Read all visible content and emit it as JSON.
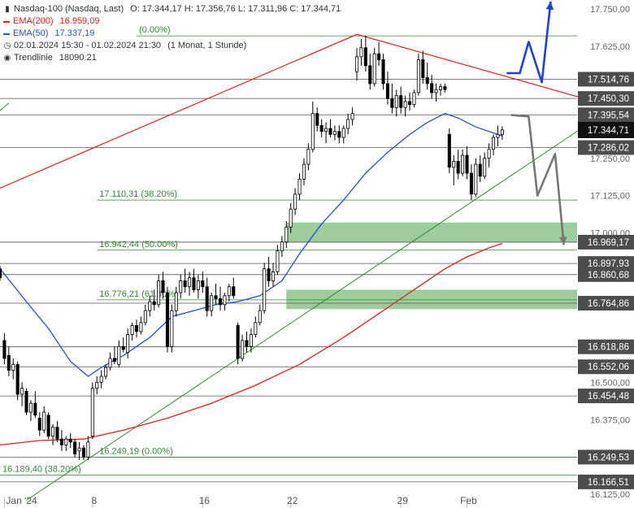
{
  "legend": {
    "symbol": "Nasdaq-100 (Nasdaq, Last)",
    "ohlc": "O: 17.344,17  H: 17.356,76  L: 17.311,96  C: 17.344,71",
    "ema200_label": "EMA(200)",
    "ema200_value": "16.959,09",
    "ema50_label": "EMA(50)",
    "ema50_value": "17.337,19",
    "range": "02.01.2024 15:30 - 01.02.2024 21:30",
    "interval": "(1 Monat, 1 Stunde)",
    "trendline_label": "Trendlinie",
    "trendline_value": "18090.21"
  },
  "colors": {
    "up": "#ffffff",
    "down": "#000000",
    "ema200": "#e0201c",
    "ema50": "#2450e0",
    "green_line": "#2e8b2e",
    "zone": "#8cc48c",
    "level_line": "#555555",
    "label_bg": "#4d4d4d",
    "current_bg": "#111111",
    "arrow_blue": "#1f3fe0",
    "arrow_grey": "#777777"
  },
  "chart_data": {
    "type": "candlestick",
    "ylim": [
      16120,
      17780
    ],
    "x_ticks": [
      {
        "label": "Jan '24",
        "x": 0
      },
      {
        "label": "8",
        "x": 20
      },
      {
        "label": "16",
        "x": 45
      },
      {
        "label": "22",
        "x": 65
      },
      {
        "label": "29",
        "x": 90
      },
      {
        "label": "Feb",
        "x": 105
      }
    ],
    "x_range": [
      -1,
      130
    ],
    "y_ticks": [
      "17.750,00",
      "17.625,00",
      "17.250,00",
      "17.125,00",
      "17.000,00",
      "16.500,00",
      "16.375,00",
      "16.125,00"
    ],
    "y_tick_values": [
      17750,
      17625,
      17250,
      17125,
      17000,
      16500,
      16375,
      16125
    ],
    "levels": [
      {
        "label": "17.514,76",
        "value": 17514.76
      },
      {
        "label": "17.450,30",
        "value": 17450.3
      },
      {
        "label": "17.395,54",
        "value": 17395.54
      },
      {
        "label": "17.286,02",
        "value": 17286.02
      },
      {
        "label": "16.969,17",
        "value": 16969.17
      },
      {
        "label": "16.897,93",
        "value": 16897.93
      },
      {
        "label": "16.860,68",
        "value": 16860.68
      },
      {
        "label": "16.764,86",
        "value": 16764.86
      },
      {
        "label": "16.618,86",
        "value": 16618.86
      },
      {
        "label": "16.552,06",
        "value": 16552.06
      },
      {
        "label": "16.454,48",
        "value": 16454.48
      },
      {
        "label": "16.249,53",
        "value": 16249.53
      },
      {
        "label": "16.166,51",
        "value": 16166.51
      }
    ],
    "current_price": {
      "label": "17.344,71",
      "value": 17344.71
    },
    "fib_levels": [
      {
        "label": "17.110,31 (38.20%)",
        "value": 17110.31
      },
      {
        "label": "16.942,44 (50.00%)",
        "value": 16942.44
      },
      {
        "label": "16.776,21 (61.80%)",
        "value": 16776.21
      },
      {
        "label": "16.249,19 (0.00%)",
        "value": 16249.19
      },
      {
        "label": "16.189,40 (38.20%)",
        "value": 16189.4
      },
      {
        "label": "(0.00%)",
        "value": 17660
      }
    ],
    "zones": [
      {
        "from": 16970,
        "to": 17035
      },
      {
        "from": 16745,
        "to": 16810
      }
    ],
    "ema50": [
      [
        -1,
        16880
      ],
      [
        5,
        16770
      ],
      [
        10,
        16680
      ],
      [
        15,
        16570
      ],
      [
        19,
        16520
      ],
      [
        22,
        16550
      ],
      [
        27,
        16590
      ],
      [
        33,
        16650
      ],
      [
        38,
        16720
      ],
      [
        43,
        16740
      ],
      [
        48,
        16760
      ],
      [
        53,
        16770
      ],
      [
        58,
        16790
      ],
      [
        63,
        16840
      ],
      [
        67,
        16930
      ],
      [
        72,
        17030
      ],
      [
        77,
        17110
      ],
      [
        82,
        17200
      ],
      [
        87,
        17270
      ],
      [
        92,
        17330
      ],
      [
        96,
        17370
      ],
      [
        100,
        17400
      ],
      [
        103,
        17385
      ],
      [
        107,
        17355
      ],
      [
        112,
        17330
      ],
      [
        113,
        17325
      ]
    ],
    "ema200": [
      [
        -1,
        16290
      ],
      [
        8,
        16305
      ],
      [
        18,
        16310
      ],
      [
        27,
        16340
      ],
      [
        37,
        16380
      ],
      [
        47,
        16430
      ],
      [
        57,
        16490
      ],
      [
        67,
        16560
      ],
      [
        77,
        16650
      ],
      [
        87,
        16750
      ],
      [
        95,
        16830
      ],
      [
        100,
        16880
      ],
      [
        105,
        16920
      ],
      [
        110,
        16950
      ],
      [
        113,
        16965
      ]
    ],
    "trendline_red": [
      [
        -1,
        17150
      ],
      [
        80,
        17665
      ],
      [
        134,
        17440
      ]
    ],
    "trendline_green": [
      [
        -1,
        17410
      ],
      [
        1,
        17435
      ]
    ],
    "trendline_green_support": [
      [
        5,
        16105
      ],
      [
        134,
        17380
      ]
    ],
    "blue_projection": [
      [
        114,
        17535
      ],
      [
        117,
        17535
      ],
      [
        119,
        17640
      ],
      [
        122,
        17505
      ],
      [
        124,
        17775
      ]
    ],
    "grey_projection": [
      [
        115,
        17395
      ],
      [
        119,
        17390
      ],
      [
        121,
        17125
      ],
      [
        125,
        17265
      ],
      [
        127,
        16960
      ]
    ],
    "candles": [
      {
        "x": -1,
        "o": 16880,
        "h": 16890,
        "l": 16840,
        "c": 16850
      },
      {
        "x": 0,
        "o": 16640,
        "h": 16665,
        "l": 16560,
        "c": 16580
      },
      {
        "x": 1,
        "o": 16590,
        "h": 16620,
        "l": 16520,
        "c": 16540
      },
      {
        "x": 2,
        "o": 16540,
        "h": 16580,
        "l": 16510,
        "c": 16560
      },
      {
        "x": 3,
        "o": 16560,
        "h": 16570,
        "l": 16440,
        "c": 16460
      },
      {
        "x": 4,
        "o": 16460,
        "h": 16500,
        "l": 16420,
        "c": 16480
      },
      {
        "x": 5,
        "o": 16470,
        "h": 16480,
        "l": 16390,
        "c": 16400
      },
      {
        "x": 6,
        "o": 16400,
        "h": 16440,
        "l": 16370,
        "c": 16430
      },
      {
        "x": 7,
        "o": 16430,
        "h": 16470,
        "l": 16380,
        "c": 16390
      },
      {
        "x": 8,
        "o": 16380,
        "h": 16400,
        "l": 16320,
        "c": 16340
      },
      {
        "x": 9,
        "o": 16340,
        "h": 16420,
        "l": 16330,
        "c": 16400
      },
      {
        "x": 10,
        "o": 16390,
        "h": 16400,
        "l": 16310,
        "c": 16320
      },
      {
        "x": 11,
        "o": 16320,
        "h": 16360,
        "l": 16290,
        "c": 16350
      },
      {
        "x": 12,
        "o": 16350,
        "h": 16370,
        "l": 16300,
        "c": 16310
      },
      {
        "x": 13,
        "o": 16310,
        "h": 16340,
        "l": 16270,
        "c": 16290
      },
      {
        "x": 14,
        "o": 16290,
        "h": 16320,
        "l": 16270,
        "c": 16310
      },
      {
        "x": 15,
        "o": 16310,
        "h": 16330,
        "l": 16280,
        "c": 16300
      },
      {
        "x": 16,
        "o": 16300,
        "h": 16310,
        "l": 16250,
        "c": 16260
      },
      {
        "x": 17,
        "o": 16270,
        "h": 16300,
        "l": 16240,
        "c": 16280
      },
      {
        "x": 18,
        "o": 16280,
        "h": 16290,
        "l": 16240,
        "c": 16250
      },
      {
        "x": 19,
        "o": 16250,
        "h": 16320,
        "l": 16240,
        "c": 16300
      },
      {
        "x": 20,
        "o": 16320,
        "h": 16500,
        "l": 16310,
        "c": 16480
      },
      {
        "x": 21,
        "o": 16480,
        "h": 16520,
        "l": 16460,
        "c": 16500
      },
      {
        "x": 22,
        "o": 16500,
        "h": 16540,
        "l": 16480,
        "c": 16520
      },
      {
        "x": 23,
        "o": 16520,
        "h": 16560,
        "l": 16510,
        "c": 16550
      },
      {
        "x": 24,
        "o": 16550,
        "h": 16600,
        "l": 16540,
        "c": 16580
      },
      {
        "x": 25,
        "o": 16580,
        "h": 16620,
        "l": 16560,
        "c": 16570
      },
      {
        "x": 26,
        "o": 16560,
        "h": 16640,
        "l": 16550,
        "c": 16620
      },
      {
        "x": 27,
        "o": 16620,
        "h": 16650,
        "l": 16600,
        "c": 16610
      },
      {
        "x": 28,
        "o": 16600,
        "h": 16680,
        "l": 16580,
        "c": 16660
      },
      {
        "x": 29,
        "o": 16660,
        "h": 16700,
        "l": 16640,
        "c": 16690
      },
      {
        "x": 30,
        "o": 16690,
        "h": 16710,
        "l": 16650,
        "c": 16670
      },
      {
        "x": 31,
        "o": 16670,
        "h": 16720,
        "l": 16660,
        "c": 16700
      },
      {
        "x": 32,
        "o": 16700,
        "h": 16760,
        "l": 16690,
        "c": 16740
      },
      {
        "x": 33,
        "o": 16740,
        "h": 16790,
        "l": 16720,
        "c": 16770
      },
      {
        "x": 34,
        "o": 16770,
        "h": 16810,
        "l": 16740,
        "c": 16760
      },
      {
        "x": 35,
        "o": 16760,
        "h": 16860,
        "l": 16750,
        "c": 16840
      },
      {
        "x": 36,
        "o": 16840,
        "h": 16870,
        "l": 16780,
        "c": 16800
      },
      {
        "x": 37,
        "o": 16800,
        "h": 16820,
        "l": 16600,
        "c": 16620
      },
      {
        "x": 38,
        "o": 16620,
        "h": 16760,
        "l": 16600,
        "c": 16740
      },
      {
        "x": 39,
        "o": 16740,
        "h": 16820,
        "l": 16720,
        "c": 16800
      },
      {
        "x": 40,
        "o": 16800,
        "h": 16860,
        "l": 16780,
        "c": 16840
      },
      {
        "x": 41,
        "o": 16840,
        "h": 16880,
        "l": 16800,
        "c": 16820
      },
      {
        "x": 42,
        "o": 16820,
        "h": 16870,
        "l": 16790,
        "c": 16850
      },
      {
        "x": 43,
        "o": 16850,
        "h": 16880,
        "l": 16800,
        "c": 16810
      },
      {
        "x": 44,
        "o": 16810,
        "h": 16860,
        "l": 16780,
        "c": 16840
      },
      {
        "x": 45,
        "o": 16840,
        "h": 16870,
        "l": 16800,
        "c": 16820
      },
      {
        "x": 46,
        "o": 16820,
        "h": 16850,
        "l": 16720,
        "c": 16740
      },
      {
        "x": 47,
        "o": 16740,
        "h": 16800,
        "l": 16720,
        "c": 16790
      },
      {
        "x": 48,
        "o": 16790,
        "h": 16830,
        "l": 16760,
        "c": 16780
      },
      {
        "x": 49,
        "o": 16780,
        "h": 16820,
        "l": 16740,
        "c": 16760
      },
      {
        "x": 50,
        "o": 16760,
        "h": 16800,
        "l": 16740,
        "c": 16790
      },
      {
        "x": 51,
        "o": 16790,
        "h": 16830,
        "l": 16770,
        "c": 16820
      },
      {
        "x": 52,
        "o": 16820,
        "h": 16850,
        "l": 16780,
        "c": 16790
      },
      {
        "x": 53,
        "o": 16690,
        "h": 16700,
        "l": 16560,
        "c": 16580
      },
      {
        "x": 54,
        "o": 16580,
        "h": 16660,
        "l": 16570,
        "c": 16640
      },
      {
        "x": 55,
        "o": 16640,
        "h": 16670,
        "l": 16600,
        "c": 16620
      },
      {
        "x": 56,
        "o": 16620,
        "h": 16680,
        "l": 16600,
        "c": 16660
      },
      {
        "x": 57,
        "o": 16660,
        "h": 16720,
        "l": 16650,
        "c": 16700
      },
      {
        "x": 58,
        "o": 16700,
        "h": 16760,
        "l": 16690,
        "c": 16740
      },
      {
        "x": 59,
        "o": 16740,
        "h": 16900,
        "l": 16730,
        "c": 16880
      },
      {
        "x": 60,
        "o": 16880,
        "h": 16920,
        "l": 16820,
        "c": 16840
      },
      {
        "x": 61,
        "o": 16840,
        "h": 16900,
        "l": 16820,
        "c": 16870
      },
      {
        "x": 62,
        "o": 16870,
        "h": 16960,
        "l": 16860,
        "c": 16940
      },
      {
        "x": 63,
        "o": 16940,
        "h": 16990,
        "l": 16920,
        "c": 16970
      },
      {
        "x": 64,
        "o": 16970,
        "h": 17040,
        "l": 16950,
        "c": 17020
      },
      {
        "x": 65,
        "o": 17020,
        "h": 17100,
        "l": 17000,
        "c": 17080
      },
      {
        "x": 66,
        "o": 17080,
        "h": 17150,
        "l": 17060,
        "c": 17130
      },
      {
        "x": 67,
        "o": 17130,
        "h": 17200,
        "l": 17110,
        "c": 17180
      },
      {
        "x": 68,
        "o": 17180,
        "h": 17250,
        "l": 17160,
        "c": 17230
      },
      {
        "x": 69,
        "o": 17230,
        "h": 17300,
        "l": 17210,
        "c": 17280
      },
      {
        "x": 70,
        "o": 17280,
        "h": 17440,
        "l": 17270,
        "c": 17400
      },
      {
        "x": 71,
        "o": 17400,
        "h": 17420,
        "l": 17340,
        "c": 17360
      },
      {
        "x": 72,
        "o": 17360,
        "h": 17380,
        "l": 17320,
        "c": 17340
      },
      {
        "x": 73,
        "o": 17340,
        "h": 17370,
        "l": 17300,
        "c": 17350
      },
      {
        "x": 74,
        "o": 17350,
        "h": 17380,
        "l": 17320,
        "c": 17330
      },
      {
        "x": 75,
        "o": 17330,
        "h": 17360,
        "l": 17310,
        "c": 17340
      },
      {
        "x": 76,
        "o": 17340,
        "h": 17360,
        "l": 17300,
        "c": 17320
      },
      {
        "x": 77,
        "o": 17320,
        "h": 17360,
        "l": 17300,
        "c": 17350
      },
      {
        "x": 78,
        "o": 17350,
        "h": 17400,
        "l": 17330,
        "c": 17380
      },
      {
        "x": 79,
        "o": 17380,
        "h": 17420,
        "l": 17360,
        "c": 17400
      },
      {
        "x": 80,
        "o": 17540,
        "h": 17620,
        "l": 17510,
        "c": 17590
      },
      {
        "x": 81,
        "o": 17590,
        "h": 17650,
        "l": 17560,
        "c": 17620
      },
      {
        "x": 82,
        "o": 17620,
        "h": 17660,
        "l": 17540,
        "c": 17560
      },
      {
        "x": 83,
        "o": 17560,
        "h": 17600,
        "l": 17480,
        "c": 17500
      },
      {
        "x": 84,
        "o": 17500,
        "h": 17620,
        "l": 17490,
        "c": 17600
      },
      {
        "x": 85,
        "o": 17600,
        "h": 17640,
        "l": 17560,
        "c": 17580
      },
      {
        "x": 86,
        "o": 17580,
        "h": 17600,
        "l": 17480,
        "c": 17500
      },
      {
        "x": 87,
        "o": 17500,
        "h": 17540,
        "l": 17430,
        "c": 17450
      },
      {
        "x": 88,
        "o": 17450,
        "h": 17500,
        "l": 17400,
        "c": 17420
      },
      {
        "x": 89,
        "o": 17420,
        "h": 17480,
        "l": 17390,
        "c": 17460
      },
      {
        "x": 90,
        "o": 17460,
        "h": 17490,
        "l": 17400,
        "c": 17420
      },
      {
        "x": 91,
        "o": 17420,
        "h": 17460,
        "l": 17390,
        "c": 17440
      },
      {
        "x": 92,
        "o": 17440,
        "h": 17470,
        "l": 17410,
        "c": 17430
      },
      {
        "x": 93,
        "o": 17430,
        "h": 17480,
        "l": 17420,
        "c": 17470
      },
      {
        "x": 94,
        "o": 17470,
        "h": 17600,
        "l": 17460,
        "c": 17580
      },
      {
        "x": 95,
        "o": 17580,
        "h": 17610,
        "l": 17500,
        "c": 17520
      },
      {
        "x": 96,
        "o": 17520,
        "h": 17570,
        "l": 17480,
        "c": 17500
      },
      {
        "x": 97,
        "o": 17500,
        "h": 17530,
        "l": 17450,
        "c": 17470
      },
      {
        "x": 98,
        "o": 17470,
        "h": 17500,
        "l": 17440,
        "c": 17480
      },
      {
        "x": 99,
        "o": 17480,
        "h": 17500,
        "l": 17460,
        "c": 17490
      },
      {
        "x": 100,
        "o": 17490,
        "h": 17500,
        "l": 17470,
        "c": 17480
      },
      {
        "x": 101,
        "o": 17330,
        "h": 17350,
        "l": 17200,
        "c": 17220
      },
      {
        "x": 102,
        "o": 17220,
        "h": 17260,
        "l": 17160,
        "c": 17240
      },
      {
        "x": 103,
        "o": 17240,
        "h": 17280,
        "l": 17180,
        "c": 17200
      },
      {
        "x": 104,
        "o": 17200,
        "h": 17280,
        "l": 17190,
        "c": 17260
      },
      {
        "x": 105,
        "o": 17260,
        "h": 17290,
        "l": 17180,
        "c": 17200
      },
      {
        "x": 106,
        "o": 17200,
        "h": 17230,
        "l": 17110,
        "c": 17130
      },
      {
        "x": 107,
        "o": 17130,
        "h": 17250,
        "l": 17120,
        "c": 17230
      },
      {
        "x": 108,
        "o": 17230,
        "h": 17260,
        "l": 17170,
        "c": 17190
      },
      {
        "x": 109,
        "o": 17190,
        "h": 17270,
        "l": 17180,
        "c": 17250
      },
      {
        "x": 110,
        "o": 17250,
        "h": 17300,
        "l": 17220,
        "c": 17280
      },
      {
        "x": 111,
        "o": 17280,
        "h": 17330,
        "l": 17260,
        "c": 17320
      },
      {
        "x": 112,
        "o": 17320,
        "h": 17360,
        "l": 17290,
        "c": 17330
      },
      {
        "x": 113,
        "o": 17330,
        "h": 17357,
        "l": 17312,
        "c": 17345
      }
    ]
  }
}
